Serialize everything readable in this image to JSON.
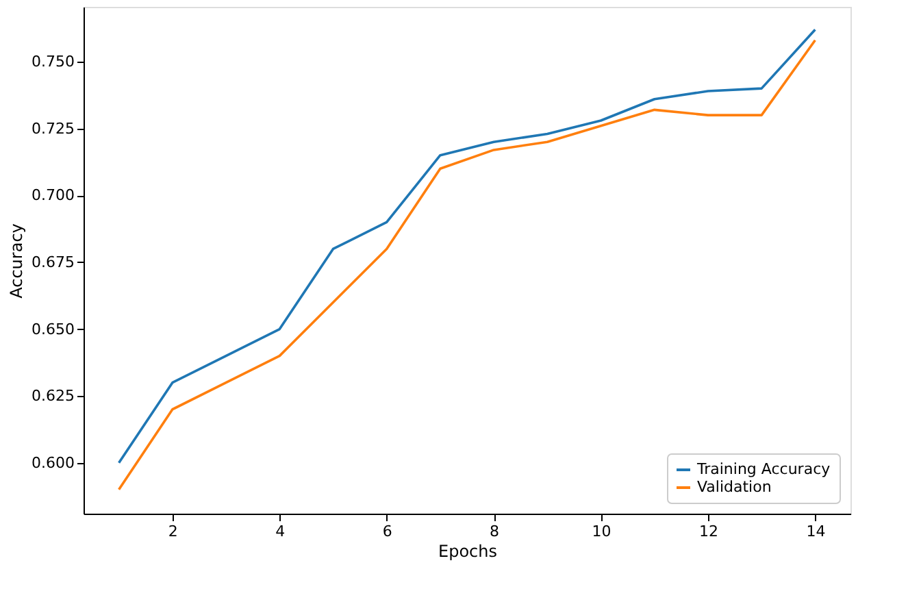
{
  "chart_data": {
    "type": "line",
    "xlabel": "Epochs",
    "ylabel": "Accuracy",
    "x": [
      1,
      2,
      3,
      4,
      5,
      6,
      7,
      8,
      9,
      10,
      11,
      12,
      13,
      14
    ],
    "series": [
      {
        "name": "Training Accuracy",
        "color": "#1f77b4",
        "values": [
          0.6,
          0.63,
          0.64,
          0.65,
          0.68,
          0.69,
          0.715,
          0.72,
          0.723,
          0.728,
          0.736,
          0.739,
          0.74,
          0.762
        ]
      },
      {
        "name": "Validation",
        "color": "#ff7f0e",
        "values": [
          0.59,
          0.62,
          0.63,
          0.64,
          0.66,
          0.68,
          0.71,
          0.717,
          0.72,
          0.726,
          0.732,
          0.73,
          0.73,
          0.758
        ]
      }
    ],
    "xlim": [
      0.34,
      14.66
    ],
    "ylim": [
      0.581,
      0.7705
    ],
    "xticks": [
      2,
      4,
      6,
      8,
      10,
      12,
      14
    ],
    "yticks": [
      {
        "value": 0.6,
        "label": "0.600"
      },
      {
        "value": 0.625,
        "label": "0.625"
      },
      {
        "value": 0.65,
        "label": "0.650"
      },
      {
        "value": 0.675,
        "label": "0.675"
      },
      {
        "value": 0.7,
        "label": "0.700"
      },
      {
        "value": 0.725,
        "label": "0.725"
      },
      {
        "value": 0.75,
        "label": "0.750"
      }
    ],
    "grid": false,
    "legend": "bottom right",
    "marker": "none",
    "line_style": "solid"
  }
}
